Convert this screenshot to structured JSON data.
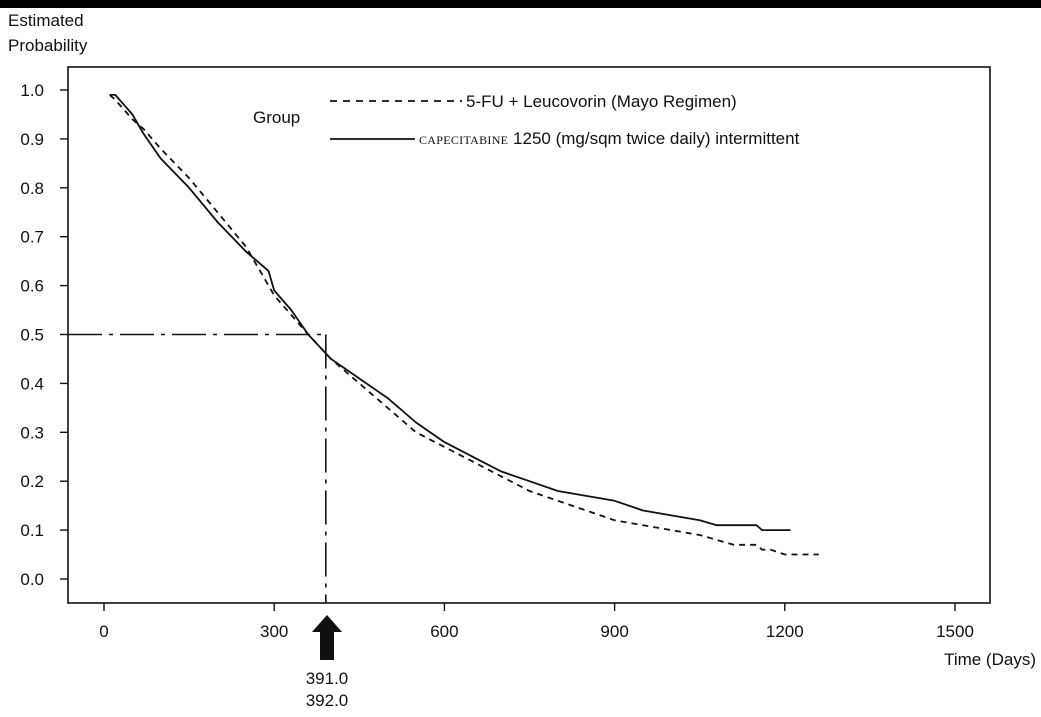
{
  "chart_data": {
    "type": "line",
    "title": "",
    "ylabel_line1": "Estimated",
    "ylabel_line2": "Probability",
    "xlabel": "Time (Days)",
    "xlim": [
      -80,
      1600
    ],
    "ylim": [
      -0.05,
      1.05
    ],
    "x_ticks": [
      0,
      300,
      600,
      900,
      1200,
      1500
    ],
    "y_ticks": [
      0.0,
      0.1,
      0.2,
      0.3,
      0.4,
      0.5,
      0.6,
      0.7,
      0.8,
      0.9,
      1.0
    ],
    "y_tick_labels": [
      "0.0",
      "0.1",
      "0.2",
      "0.3",
      "0.4",
      "0.5",
      "0.6",
      "0.7",
      "0.8",
      "0.9",
      "1.0"
    ],
    "grid": false,
    "legend": {
      "title": "Group",
      "placement": "top-right",
      "entries": [
        {
          "style": "dashed",
          "label": "5-FU + Leucovorin (Mayo Regimen)"
        },
        {
          "style": "solid",
          "label_small": "CAPECITABINE",
          "label": " 1250 (mg/sqm twice daily) intermittent"
        }
      ]
    },
    "series": [
      {
        "style": "dashed",
        "x": [
          10,
          20,
          35,
          50,
          70,
          100,
          150,
          200,
          250,
          280,
          300,
          330,
          360,
          400,
          450,
          500,
          550,
          600,
          650,
          700,
          750,
          800,
          850,
          900,
          950,
          1000,
          1050,
          1080,
          1110,
          1150,
          1160,
          1175,
          1200,
          1230,
          1260
        ],
        "y": [
          0.99,
          0.98,
          0.96,
          0.94,
          0.92,
          0.88,
          0.82,
          0.75,
          0.68,
          0.62,
          0.58,
          0.54,
          0.5,
          0.45,
          0.4,
          0.35,
          0.3,
          0.27,
          0.24,
          0.21,
          0.18,
          0.16,
          0.14,
          0.12,
          0.11,
          0.1,
          0.09,
          0.08,
          0.07,
          0.07,
          0.06,
          0.06,
          0.05,
          0.05,
          0.05
        ]
      },
      {
        "style": "solid",
        "x": [
          10,
          20,
          35,
          50,
          70,
          100,
          150,
          200,
          250,
          290,
          300,
          330,
          360,
          400,
          450,
          500,
          550,
          600,
          650,
          700,
          750,
          800,
          850,
          900,
          950,
          1000,
          1050,
          1080,
          1110,
          1150,
          1160,
          1180,
          1210
        ],
        "y": [
          0.99,
          0.99,
          0.97,
          0.95,
          0.91,
          0.86,
          0.8,
          0.73,
          0.67,
          0.63,
          0.59,
          0.55,
          0.5,
          0.45,
          0.41,
          0.37,
          0.32,
          0.28,
          0.25,
          0.22,
          0.2,
          0.18,
          0.17,
          0.16,
          0.14,
          0.13,
          0.12,
          0.11,
          0.11,
          0.11,
          0.1,
          0.1,
          0.1
        ]
      }
    ],
    "reference_line": {
      "y": 0.5,
      "x": 391
    },
    "annotations": [
      "391.0",
      "392.0"
    ]
  }
}
